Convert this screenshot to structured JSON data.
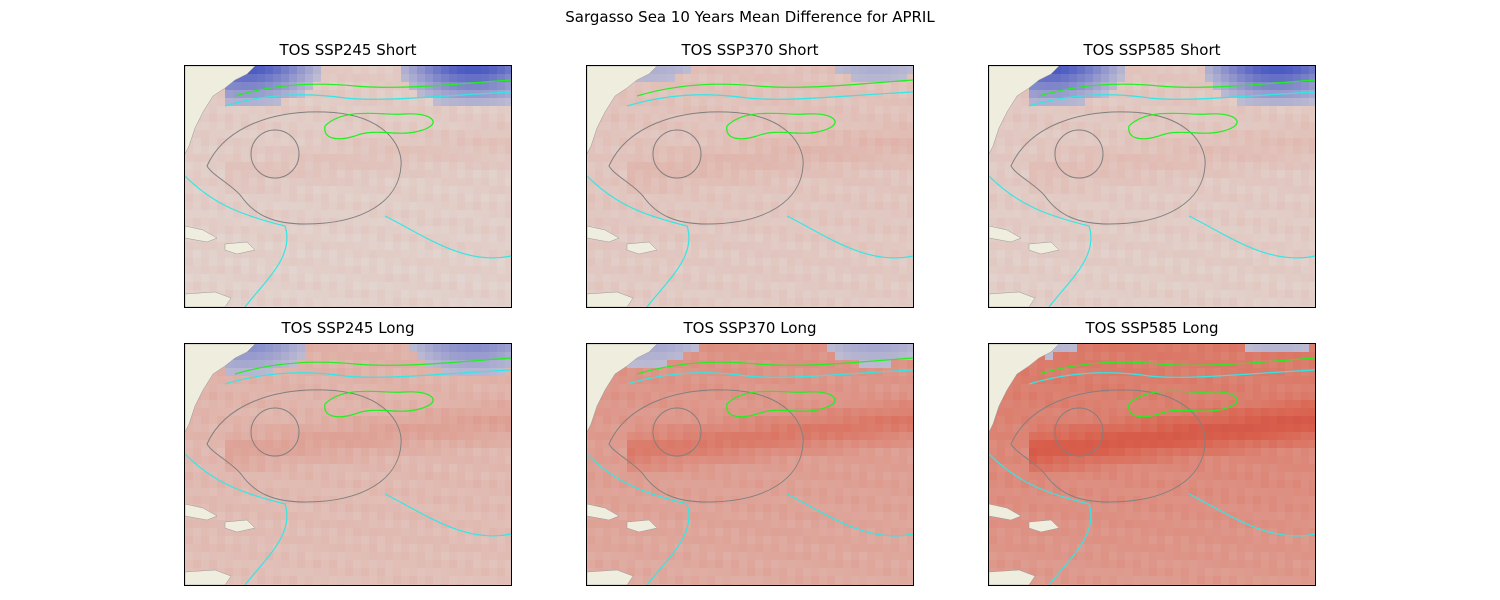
{
  "figure": {
    "title": "Sargasso Sea 10 Years Mean Difference for APRIL"
  },
  "panels": [
    {
      "title": "TOS SSP245 Short",
      "variable": "TOS",
      "scenario": "SSP245",
      "period": "Short",
      "warming": 0.15,
      "cold_band": 1.0
    },
    {
      "title": "TOS SSP370 Short",
      "variable": "TOS",
      "scenario": "SSP370",
      "period": "Short",
      "warming": 0.22,
      "cold_band": 0.35
    },
    {
      "title": "TOS SSP585 Short",
      "variable": "TOS",
      "scenario": "SSP585",
      "period": "Short",
      "warming": 0.18,
      "cold_band": 1.0
    },
    {
      "title": "TOS SSP245 Long",
      "variable": "TOS",
      "scenario": "SSP245",
      "period": "Long",
      "warming": 0.35,
      "cold_band": 0.6
    },
    {
      "title": "TOS SSP370 Long",
      "variable": "TOS",
      "scenario": "SSP370",
      "period": "Long",
      "warming": 0.6,
      "cold_band": 0.4
    },
    {
      "title": "TOS SSP585 Long",
      "variable": "TOS",
      "scenario": "SSP585",
      "period": "Long",
      "warming": 0.8,
      "cold_band": 0.3
    }
  ],
  "colors": {
    "land": "#efedde",
    "ocean_neutral": "#e3dcd8",
    "warm": "#d9604c",
    "cold": "#3b4cc0",
    "contour_cyan": "#33e6e6",
    "contour_green": "#22ee22",
    "region_outline": "#808080"
  }
}
